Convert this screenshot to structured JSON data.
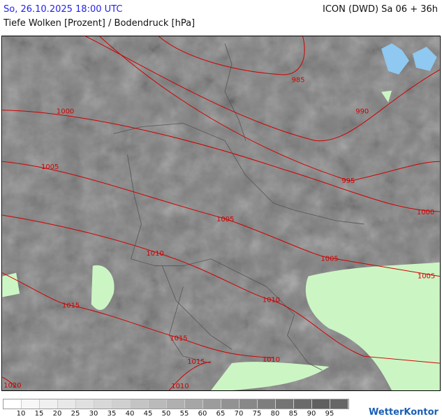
{
  "header": {
    "datetime": "So, 26.10.2025 18:00 UTC",
    "title": "Tiefe Wolken [Prozent] / Bodendruck [hPa]",
    "model": "ICON (DWD) Sa 06 + 36h"
  },
  "legend": {
    "colors": [
      "#ffffff",
      "#f7f7f7",
      "#f0f0f0",
      "#e8e8e8",
      "#e0e0e0",
      "#d8d8d8",
      "#d0d0d0",
      "#c4c4c4",
      "#bababa",
      "#b0b0b0",
      "#a6a6a6",
      "#9c9c9c",
      "#929292",
      "#888888",
      "#7e7e7e",
      "#747474",
      "#6a6a6a",
      "#606060",
      "#666666"
    ],
    "labels": [
      "10",
      "15",
      "20",
      "25",
      "30",
      "35",
      "40",
      "45",
      "50",
      "55",
      "60",
      "65",
      "70",
      "75",
      "80",
      "85",
      "90",
      "95"
    ]
  },
  "isobars": {
    "color": "#d00000",
    "labels": [
      "985",
      "990",
      "995",
      "1000",
      "1000",
      "1000",
      "1005",
      "1005",
      "1005",
      "1005",
      "1010",
      "1010",
      "1010",
      "1010",
      "1015",
      "1015",
      "1015",
      "1020"
    ]
  },
  "logo": "WetterKontor"
}
